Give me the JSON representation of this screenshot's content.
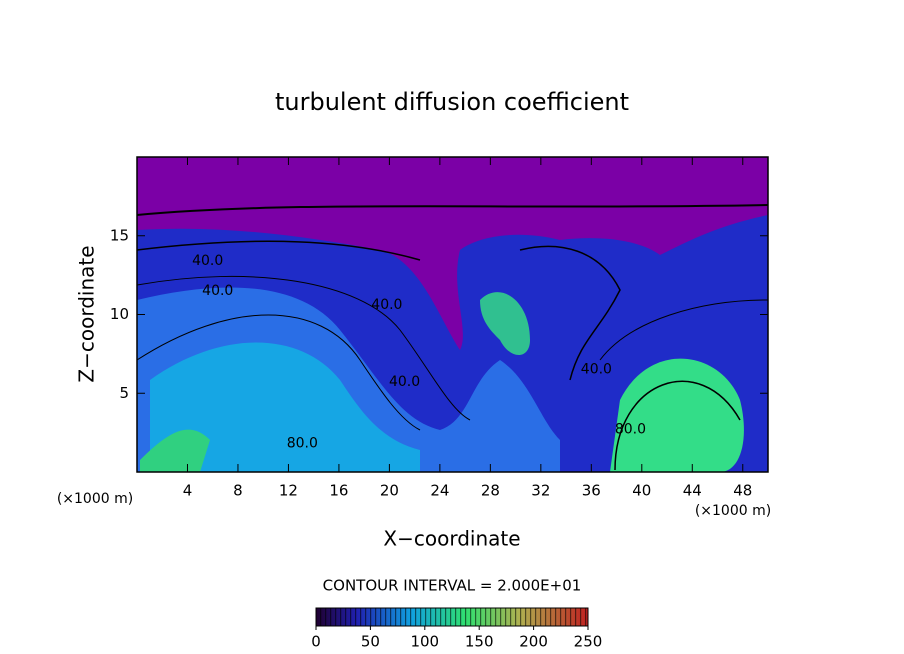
{
  "chart_data": {
    "type": "contour",
    "title": "turbulent diffusion coefficient",
    "xlabel": "X−coordinate",
    "ylabel": "Z−coordinate",
    "unit_label": "(×1000 m)",
    "xlim": [
      0,
      50
    ],
    "xticks": [
      4,
      8,
      12,
      16,
      20,
      24,
      28,
      32,
      36,
      40,
      44,
      48
    ],
    "ylim": [
      0,
      20
    ],
    "yticks": [
      5,
      10,
      15
    ],
    "contour_interval_label": "CONTOUR INTERVAL = 2.000E+01",
    "clim": [
      0,
      250
    ],
    "cticks": [
      0,
      50,
      100,
      150,
      200,
      250
    ],
    "annotations": [
      {
        "text": "40.0",
        "x": 5.6,
        "y": 13.4
      },
      {
        "text": "40.0",
        "x": 6.4,
        "y": 11.5
      },
      {
        "text": "40.0",
        "x": 19.8,
        "y": 10.6
      },
      {
        "text": "40.0",
        "x": 21.2,
        "y": 5.7
      },
      {
        "text": "80.0",
        "x": 13.1,
        "y": 1.8
      },
      {
        "text": "40.0",
        "x": 36.4,
        "y": 6.5
      },
      {
        "text": "80.0",
        "x": 39.1,
        "y": 2.7
      }
    ]
  }
}
